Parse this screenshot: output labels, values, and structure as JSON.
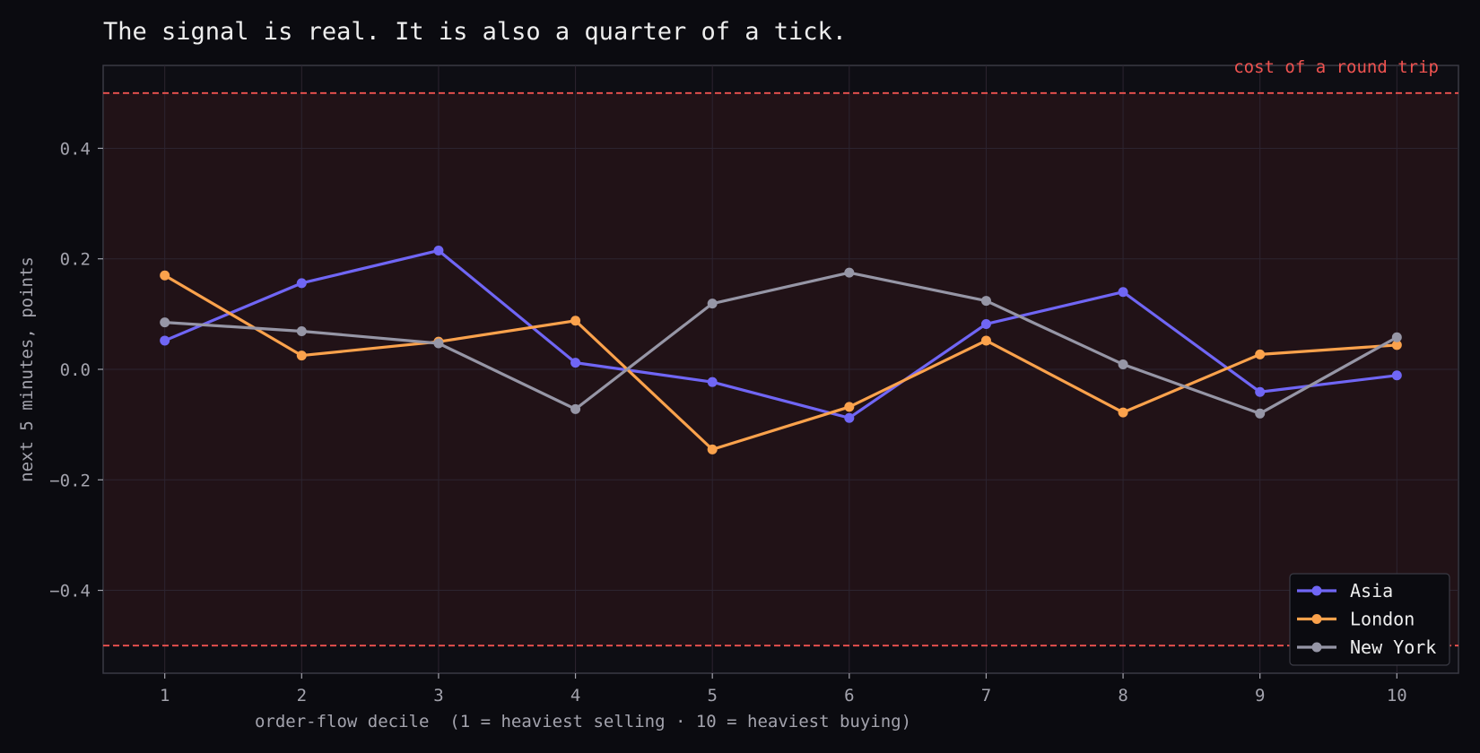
{
  "chart_data": {
    "type": "line",
    "title": "The signal is real. It is also a quarter of a tick.",
    "xlabel": "order-flow decile  (1 = heaviest selling · 10 = heaviest buying)",
    "ylabel": "next 5 minutes, points",
    "x": [
      1,
      2,
      3,
      4,
      5,
      6,
      7,
      8,
      9,
      10
    ],
    "x_tick_labels": [
      "1",
      "2",
      "3",
      "4",
      "5",
      "6",
      "7",
      "8",
      "9",
      "10"
    ],
    "xlim": [
      0.55,
      10.45
    ],
    "ylim": [
      -0.55,
      0.55
    ],
    "y_ticks": [
      -0.4,
      -0.2,
      0.0,
      0.2,
      0.4
    ],
    "y_tick_labels": [
      "−0.4",
      "−0.2",
      "0.0",
      "0.2",
      "0.4"
    ],
    "grid": true,
    "legend_position": "bottom-right",
    "series": [
      {
        "name": "Asia",
        "color": "#7066f5",
        "values": [
          0.052,
          0.156,
          0.215,
          0.012,
          -0.023,
          -0.088,
          0.082,
          0.14,
          -0.041,
          -0.011
        ]
      },
      {
        "name": "London",
        "color": "#fba24c",
        "values": [
          0.17,
          0.025,
          0.05,
          0.088,
          -0.145,
          -0.068,
          0.052,
          -0.078,
          0.027,
          0.044
        ]
      },
      {
        "name": "New York",
        "color": "#9696a6",
        "values": [
          0.085,
          0.069,
          0.047,
          -0.072,
          0.119,
          0.175,
          0.124,
          0.009,
          -0.08,
          0.058
        ]
      }
    ],
    "cost_band": {
      "label": "cost of a round trip",
      "upper": 0.5,
      "lower": -0.5,
      "color": "#ef5350",
      "fill": "#211217"
    }
  }
}
